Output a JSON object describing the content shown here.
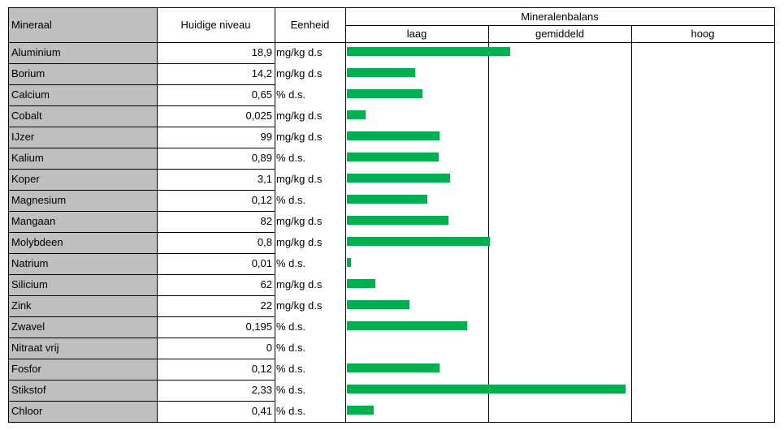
{
  "headers": {
    "mineral": "Mineraal",
    "level": "Huidige niveau",
    "unit": "Eenheid",
    "balance": "Mineralenbalans",
    "low": "laag",
    "mid": "gemiddeld",
    "high": "hoog"
  },
  "colors": {
    "bar": "#00b050",
    "name_fill": "#bfbfbf"
  },
  "rows": [
    {
      "name": "Aluminium",
      "value": "18,9",
      "unit": "mg/kg d.s"
    },
    {
      "name": "Borium",
      "value": "14,2",
      "unit": "mg/kg d.s"
    },
    {
      "name": "Calcium",
      "value": "0,65",
      "unit": "% d.s."
    },
    {
      "name": "Cobalt",
      "value": "0,025",
      "unit": "mg/kg d.s"
    },
    {
      "name": "IJzer",
      "value": "99",
      "unit": "mg/kg d.s"
    },
    {
      "name": "Kalium",
      "value": "0,89",
      "unit": "% d.s."
    },
    {
      "name": "Koper",
      "value": "3,1",
      "unit": "mg/kg d.s"
    },
    {
      "name": "Magnesium",
      "value": "0,12",
      "unit": "% d.s."
    },
    {
      "name": "Mangaan",
      "value": "82",
      "unit": "mg/kg d.s"
    },
    {
      "name": "Molybdeen",
      "value": "0,8",
      "unit": "mg/kg d.s"
    },
    {
      "name": "Natrium",
      "value": "0,01",
      "unit": "% d.s."
    },
    {
      "name": "Silicium",
      "value": "62",
      "unit": "mg/kg d.s"
    },
    {
      "name": "Zink",
      "value": "22",
      "unit": "mg/kg d.s"
    },
    {
      "name": "Zwavel",
      "value": "0,195",
      "unit": "% d.s."
    },
    {
      "name": "Nitraat  vrij",
      "value": "0",
      "unit": "% d.s."
    },
    {
      "name": "Fosfor",
      "value": "0,12",
      "unit": "% d.s."
    },
    {
      "name": "Stikstof",
      "value": "2,33",
      "unit": "% d.s."
    },
    {
      "name": "Chloor",
      "value": "0,41",
      "unit": "% d.s."
    }
  ],
  "chart_data": {
    "type": "bar",
    "orientation": "horizontal",
    "title": "Mineralenbalans",
    "categories": [
      "Aluminium",
      "Borium",
      "Calcium",
      "Cobalt",
      "IJzer",
      "Kalium",
      "Koper",
      "Magnesium",
      "Mangaan",
      "Molybdeen",
      "Natrium",
      "Silicium",
      "Zink",
      "Zwavel",
      "Nitraat  vrij",
      "Fosfor",
      "Stikstof",
      "Chloor"
    ],
    "xlabels": [
      "laag",
      "gemiddeld",
      "hoog"
    ],
    "xlim": [
      0,
      3
    ],
    "values": [
      1.14,
      0.48,
      0.53,
      0.13,
      0.65,
      0.64,
      0.72,
      0.56,
      0.71,
      1.0,
      0.03,
      0.2,
      0.44,
      0.84,
      0,
      0.65,
      1.95,
      0.19
    ]
  }
}
